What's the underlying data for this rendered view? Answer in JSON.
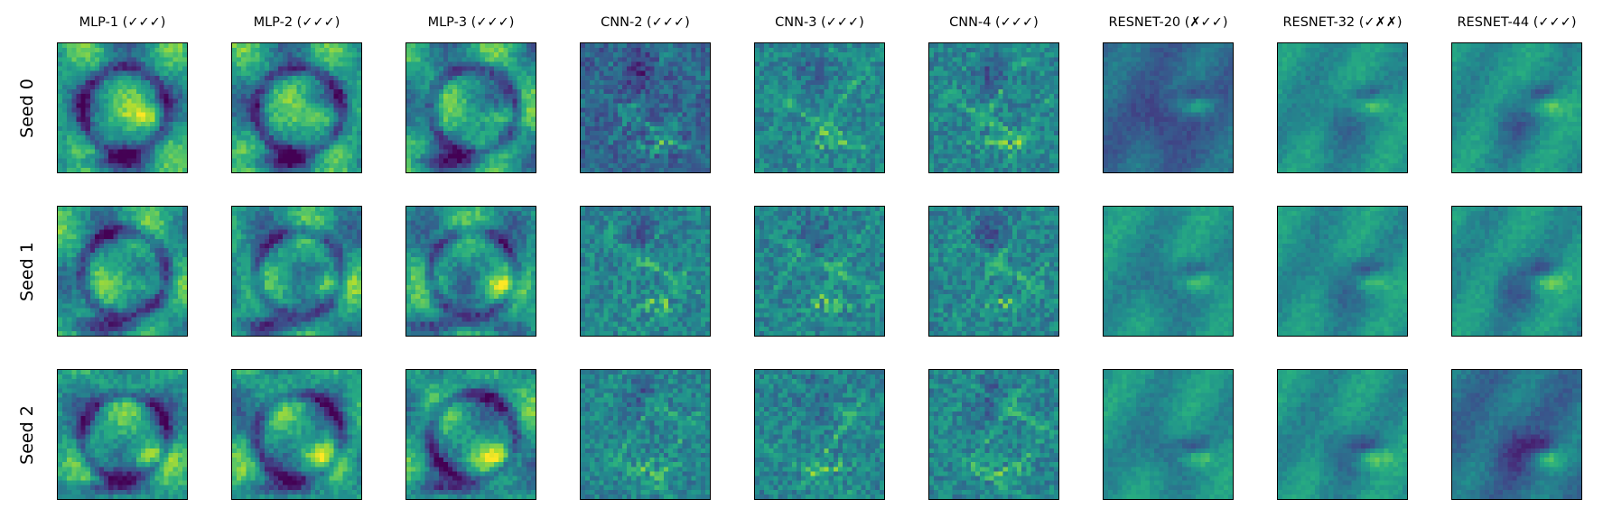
{
  "chart_data": {
    "type": "heatmap",
    "colormap": "viridis",
    "columns": [
      "MLP-1 (✓✓✓)",
      "MLP-2 (✓✓✓)",
      "MLP-3 (✓✓✓)",
      "CNN-2 (✓✓✓)",
      "CNN-3 (✓✓✓)",
      "CNN-4 (✓✓✓)",
      "RESNET-20 (✗✓✓)",
      "RESNET-32 (✓✗✗)",
      "RESNET-44 (✓✓✓)"
    ],
    "rows": [
      "Seed 0",
      "Seed 1",
      "Seed 2"
    ],
    "panel_resolution": 28,
    "grid": false,
    "axes_ticks": false
  }
}
